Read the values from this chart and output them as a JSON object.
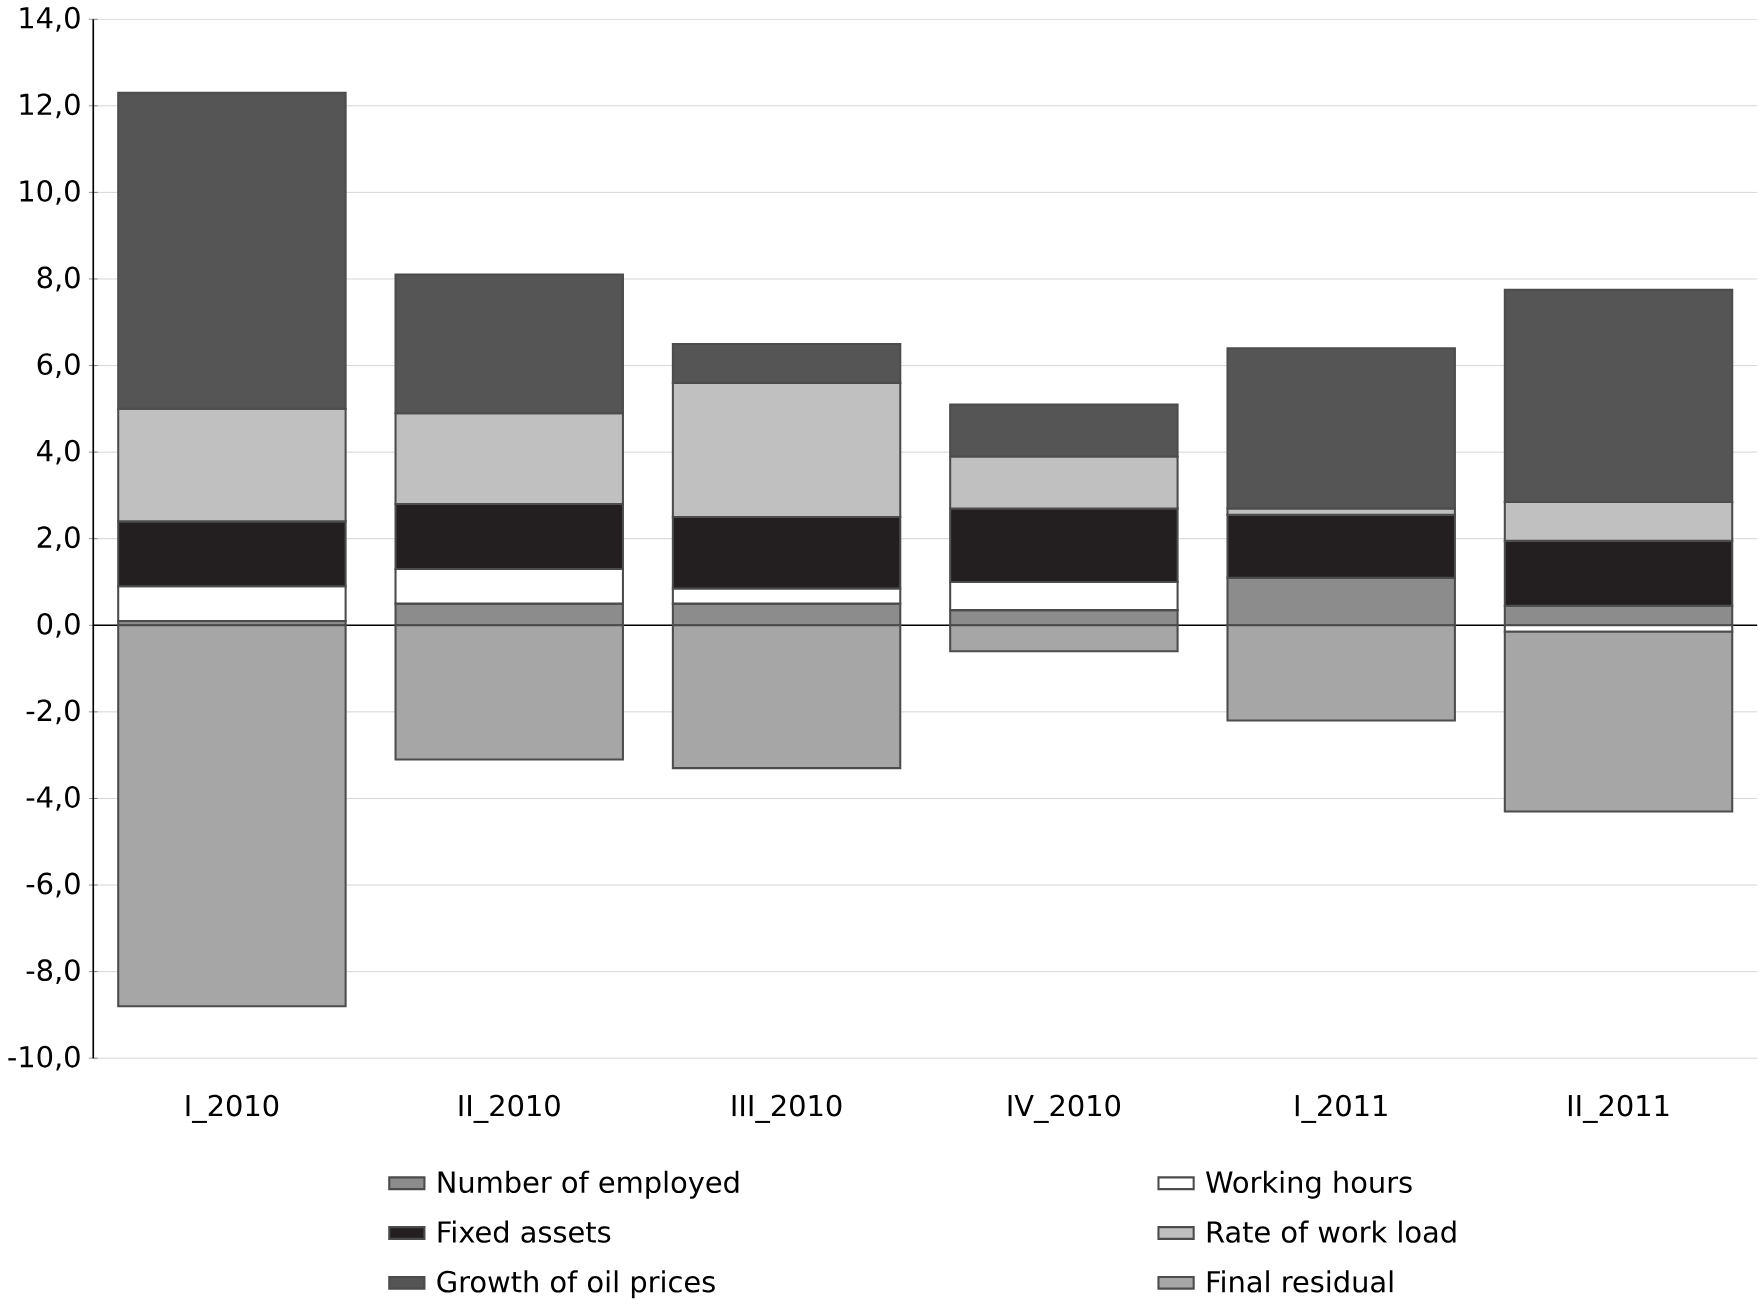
{
  "chart_data": {
    "type": "bar",
    "stacked": true,
    "categories": [
      "I_2010",
      "II_2010",
      "III_2010",
      "IV_2010",
      "I_2011",
      "II_2011"
    ],
    "series": [
      {
        "name": "Number of employed",
        "color": "#8c8c8c",
        "values": [
          0.1,
          0.5,
          0.5,
          0.35,
          1.1,
          0.45
        ]
      },
      {
        "name": "Working hours",
        "color": "#ffffff",
        "values": [
          0.8,
          0.8,
          0.35,
          0.65,
          0,
          -0.15
        ]
      },
      {
        "name": "Fixed assets",
        "color": "#231f20",
        "values": [
          1.5,
          1.5,
          1.65,
          1.7,
          1.45,
          1.5
        ]
      },
      {
        "name": "Rate of work load",
        "color": "#c0c0c0",
        "values": [
          2.6,
          2.1,
          3.1,
          1.2,
          0.15,
          0.9
        ]
      },
      {
        "name": "Growth of oil prices",
        "color": "#555555",
        "values": [
          7.3,
          3.2,
          0.9,
          1.2,
          3.7,
          4.9
        ]
      },
      {
        "name": "Final residual",
        "color": "#a6a6a6",
        "values": [
          -8.8,
          -3.1,
          -3.3,
          -0.6,
          -2.2,
          -4.15
        ]
      }
    ],
    "ylim": [
      -10,
      14
    ],
    "yticks": [
      {
        "value": -10,
        "label": "-10,0"
      },
      {
        "value": -8,
        "label": "-8,0"
      },
      {
        "value": -6,
        "label": "-6,0"
      },
      {
        "value": -4,
        "label": "-4,0"
      },
      {
        "value": -2,
        "label": "-2,0"
      },
      {
        "value": 0,
        "label": "0,0"
      },
      {
        "value": 2,
        "label": "2,0"
      },
      {
        "value": 4,
        "label": "4,0"
      },
      {
        "value": 6,
        "label": "6,0"
      },
      {
        "value": 8,
        "label": "8,0"
      },
      {
        "value": 10,
        "label": "10,0"
      },
      {
        "value": 12,
        "label": "12,0"
      },
      {
        "value": 14,
        "label": "14,0"
      }
    ],
    "grid": "y",
    "legend": "bottom"
  }
}
